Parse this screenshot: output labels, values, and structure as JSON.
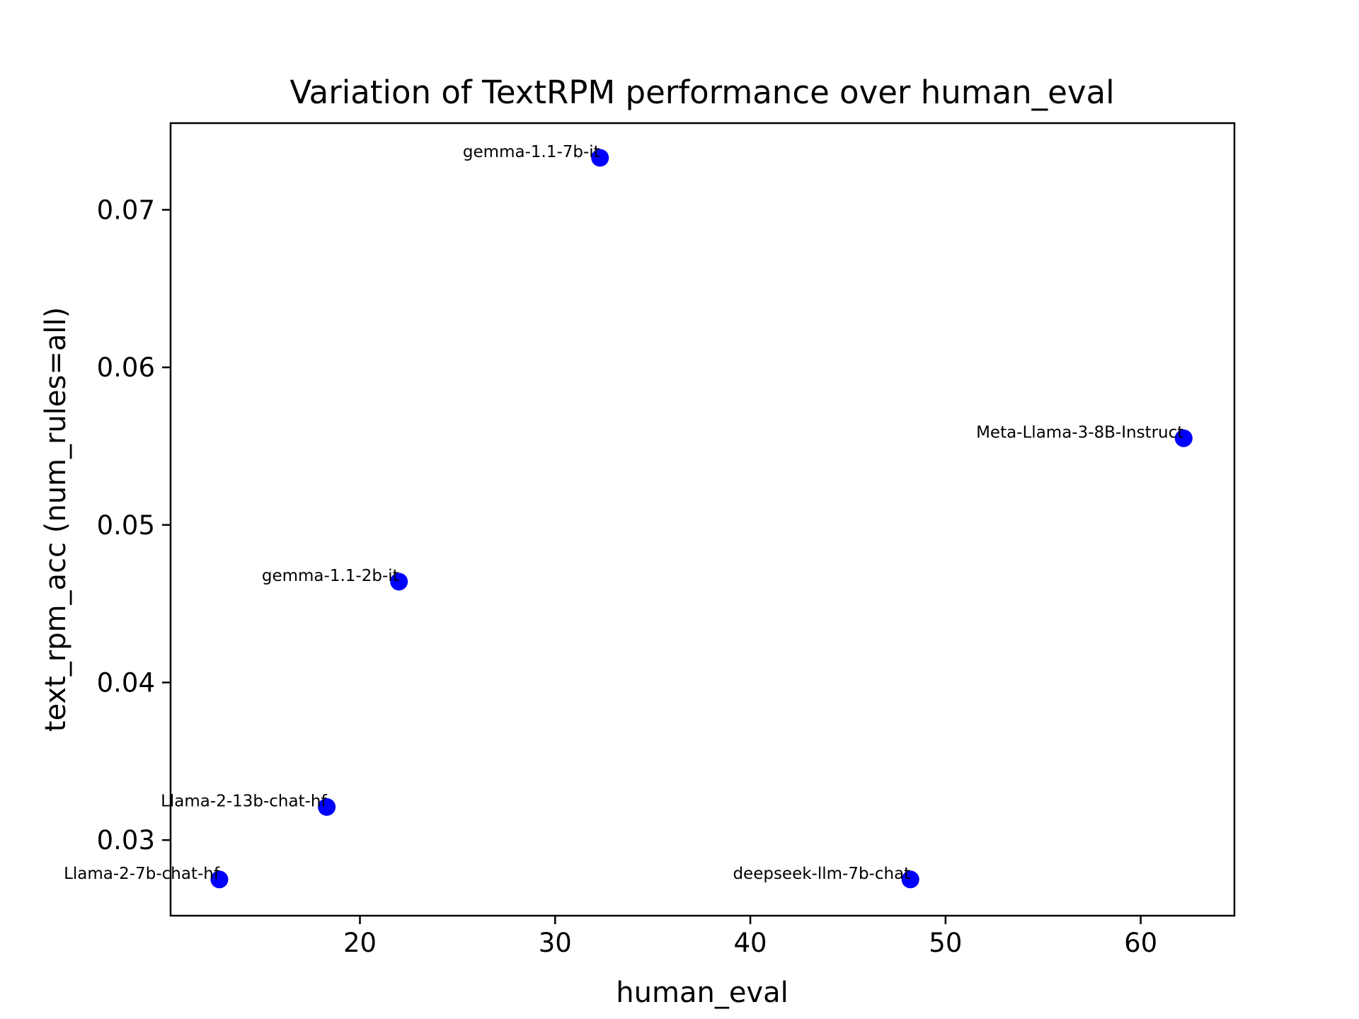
{
  "chart_data": {
    "type": "scatter",
    "title": "Variation of TextRPM performance over human_eval",
    "xlabel": "human_eval",
    "ylabel": "text_rpm_acc (num_rules=all)",
    "xlim": [
      10.3,
      64.8
    ],
    "ylim": [
      0.0252,
      0.0755
    ],
    "xticks": [
      20,
      30,
      40,
      50,
      60
    ],
    "xtick_labels": [
      "20",
      "30",
      "40",
      "50",
      "60"
    ],
    "yticks": [
      0.03,
      0.04,
      0.05,
      0.06,
      0.07
    ],
    "ytick_labels": [
      "0.03",
      "0.04",
      "0.05",
      "0.06",
      "0.07"
    ],
    "grid": false,
    "marker_color": "#0000ff",
    "points": [
      {
        "label": "gemma-1.1-7b-it",
        "x": 32.3,
        "y": 0.0733
      },
      {
        "label": "Meta-Llama-3-8B-Instruct",
        "x": 62.2,
        "y": 0.0555
      },
      {
        "label": "gemma-1.1-2b-it",
        "x": 22.0,
        "y": 0.0464
      },
      {
        "label": "Llama-2-13b-chat-hf",
        "x": 18.3,
        "y": 0.0321
      },
      {
        "label": "Llama-2-7b-chat-hf",
        "x": 12.8,
        "y": 0.0275
      },
      {
        "label": "deepseek-llm-7b-chat",
        "x": 48.2,
        "y": 0.0275
      }
    ]
  }
}
